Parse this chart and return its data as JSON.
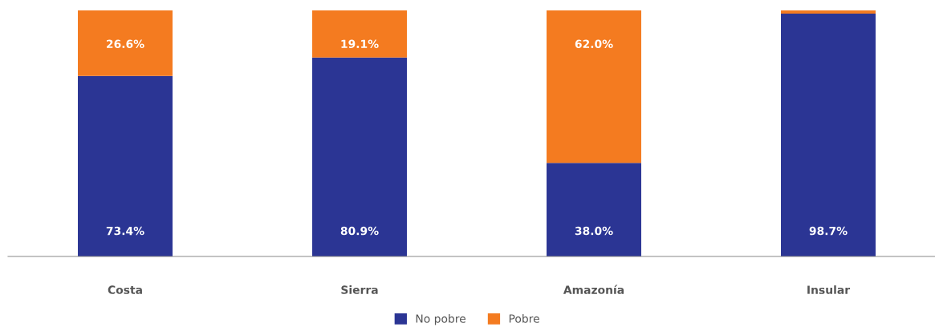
{
  "chart_data": {
    "type": "bar",
    "stacked": true,
    "categories": [
      "Costa",
      "Sierra",
      "Amazonía",
      "Insular"
    ],
    "series": [
      {
        "name": "No pobre",
        "color": "#2b3594",
        "values": [
          73.4,
          80.9,
          38.0,
          98.7
        ],
        "value_labels": [
          "73.4%",
          "80.9%",
          "38.0%",
          "98.7%"
        ]
      },
      {
        "name": "Pobre",
        "color": "#f47b20",
        "values": [
          26.6,
          19.1,
          62.0,
          1.3
        ],
        "value_labels": [
          "26.6%",
          "19.1%",
          "62.0%",
          null
        ]
      }
    ],
    "legend": "bottom",
    "tick_labels": "x"
  }
}
